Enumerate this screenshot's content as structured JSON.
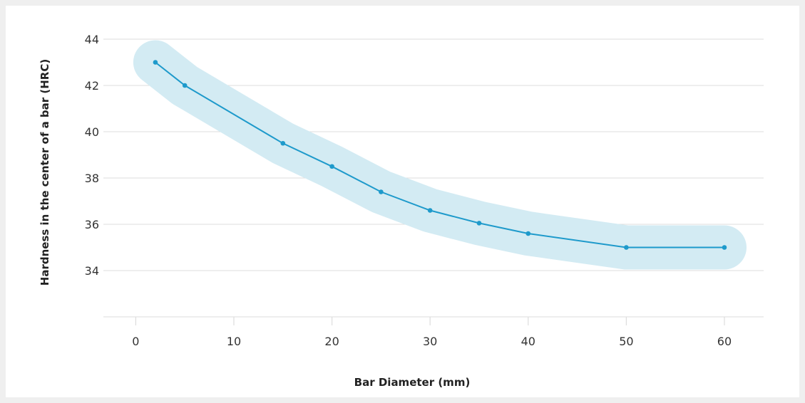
{
  "chart_data": {
    "type": "line",
    "title": "",
    "xlabel": "Bar Diameter (mm)",
    "ylabel": "Hardness in the center of a bar (HRC)",
    "xlim": [
      -3.3,
      64
    ],
    "ylim": [
      32,
      44
    ],
    "x_ticks": [
      0,
      10,
      20,
      30,
      40,
      50,
      60
    ],
    "y_ticks": [
      34,
      36,
      38,
      40,
      42,
      44
    ],
    "grid": true,
    "series": [
      {
        "x": [
          2,
          5,
          15,
          20,
          25,
          30,
          35,
          40,
          50,
          60
        ],
        "y": [
          43.0,
          42.0,
          39.5,
          38.5,
          37.4,
          36.6,
          36.05,
          35.6,
          35.0,
          35.0
        ]
      }
    ],
    "band_visible": true,
    "colors": {
      "line": "#1e9acb",
      "band": "#d3ebf3",
      "grid": "#dddddd"
    }
  }
}
